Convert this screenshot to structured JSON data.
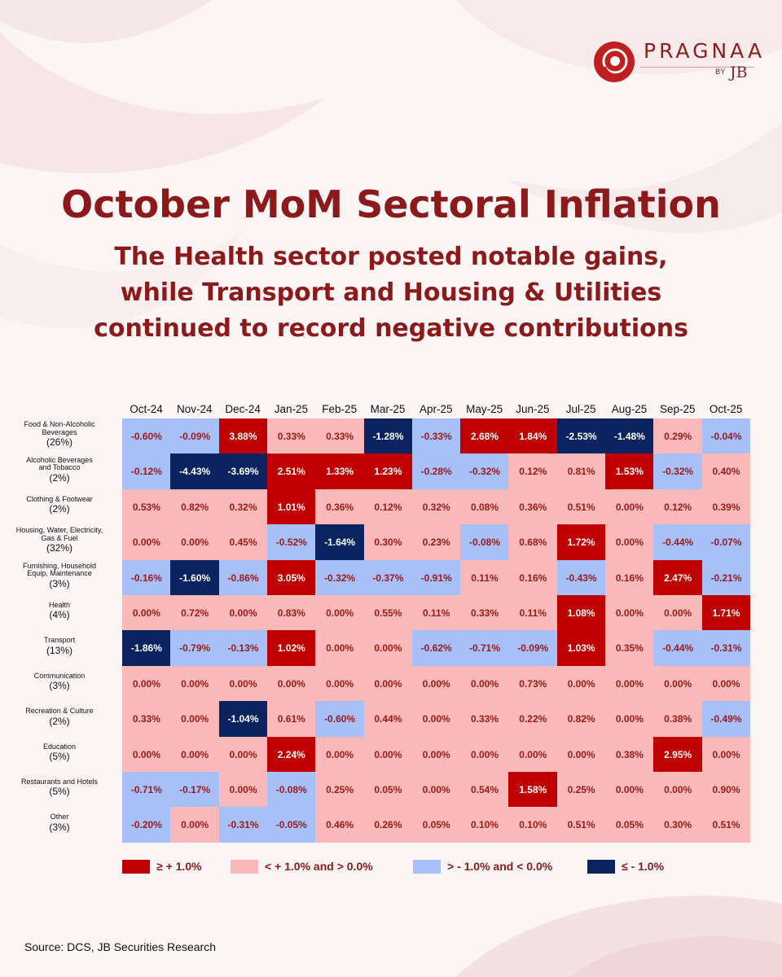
{
  "brand": {
    "name": "PRAGNAA",
    "by": "BY",
    "jb": "JB",
    "accent": "#b81f1f"
  },
  "title": "October MoM Sectoral Inflation",
  "subtitle_lines": [
    "The Health sector posted notable gains,",
    "while Transport and Housing & Utilities",
    "continued to record negative contributions"
  ],
  "chart_data": {
    "type": "heatmap",
    "columns": [
      "Oct-24",
      "Nov-24",
      "Dec-24",
      "Jan-25",
      "Feb-25",
      "Mar-25",
      "Apr-25",
      "May-25",
      "Jun-25",
      "Jul-25",
      "Aug-25",
      "Sep-25",
      "Oct-25"
    ],
    "rows": [
      {
        "name_lines": [
          "Food & Non-Alcoholic",
          "Beverages"
        ],
        "weight": "(26%)",
        "values": [
          "-0.60%",
          "-0.09%",
          "3.88%",
          "0.33%",
          "0.33%",
          "-1.28%",
          "-0.33%",
          "2.68%",
          "1.84%",
          "-2.53%",
          "-1.48%",
          "0.29%",
          "-0.04%"
        ]
      },
      {
        "name_lines": [
          "Alcoholic Beverages",
          "and Tobacco"
        ],
        "weight": "(2%)",
        "values": [
          "-0.12%",
          "-4.43%",
          "-3.69%",
          "2.51%",
          "1.33%",
          "1.23%",
          "-0.28%",
          "-0.32%",
          "0.12%",
          "0.81%",
          "1.53%",
          "-0.32%",
          "0.40%"
        ]
      },
      {
        "name_lines": [
          "Clothing & Footwear"
        ],
        "weight": "(2%)",
        "values": [
          "0.53%",
          "0.82%",
          "0.32%",
          "1.01%",
          "0.36%",
          "0.12%",
          "0.32%",
          "0.08%",
          "0.36%",
          "0.51%",
          "0.00%",
          "0.12%",
          "0.39%"
        ]
      },
      {
        "name_lines": [
          "Housing, Water, Electricity,",
          "Gas & Fuel"
        ],
        "weight": "(32%)",
        "values": [
          "0.00%",
          "0.00%",
          "0.45%",
          "-0.52%",
          "-1.64%",
          "0.30%",
          "0.23%",
          "-0.08%",
          "0.68%",
          "1.72%",
          "0.00%",
          "-0.44%",
          "-0.07%"
        ]
      },
      {
        "name_lines": [
          "Furnishing, Household",
          "Equip, Maintenance"
        ],
        "weight": "(3%)",
        "values": [
          "-0.16%",
          "-1.60%",
          "-0.86%",
          "3.05%",
          "-0.32%",
          "-0.37%",
          "-0.91%",
          "0.11%",
          "0.16%",
          "-0.43%",
          "0.16%",
          "2.47%",
          "-0.21%"
        ]
      },
      {
        "name_lines": [
          "Health"
        ],
        "weight": "(4%)",
        "values": [
          "0.00%",
          "0.72%",
          "0.00%",
          "0.83%",
          "0.00%",
          "0.55%",
          "0.11%",
          "0.33%",
          "0.11%",
          "1.08%",
          "0.00%",
          "0.00%",
          "1.71%"
        ]
      },
      {
        "name_lines": [
          "Transport"
        ],
        "weight": "(13%)",
        "values": [
          "-1.86%",
          "-0.79%",
          "-0.13%",
          "1.02%",
          "0.00%",
          "0.00%",
          "-0.62%",
          "-0.71%",
          "-0.09%",
          "1.03%",
          "0.35%",
          "-0.44%",
          "-0.31%"
        ]
      },
      {
        "name_lines": [
          "Communication"
        ],
        "weight": "(3%)",
        "values": [
          "0.00%",
          "0.00%",
          "0.00%",
          "0.00%",
          "0.00%",
          "0.00%",
          "0.00%",
          "0.00%",
          "0.73%",
          "0.00%",
          "0.00%",
          "0.00%",
          "0.00%"
        ]
      },
      {
        "name_lines": [
          "Recreation & Culture"
        ],
        "weight": "(2%)",
        "values": [
          "0.33%",
          "0.00%",
          "-1.04%",
          "0.61%",
          "-0.60%",
          "0.44%",
          "0.00%",
          "0.33%",
          "0.22%",
          "0.82%",
          "0.00%",
          "0.38%",
          "-0.49%"
        ]
      },
      {
        "name_lines": [
          "Education"
        ],
        "weight": "(5%)",
        "values": [
          "0.00%",
          "0.00%",
          "0.00%",
          "2.24%",
          "0.00%",
          "0.00%",
          "0.00%",
          "0.00%",
          "0.00%",
          "0.00%",
          "0.38%",
          "2.95%",
          "0.00%"
        ]
      },
      {
        "name_lines": [
          "Restaurants and Hotels"
        ],
        "weight": "(5%)",
        "values": [
          "-0.71%",
          "-0.17%",
          "0.00%",
          "-0.08%",
          "0.25%",
          "0.05%",
          "0.00%",
          "0.54%",
          "1.58%",
          "0.25%",
          "0.00%",
          "0.00%",
          "0.90%"
        ]
      },
      {
        "name_lines": [
          "Other"
        ],
        "weight": "(3%)",
        "values": [
          "-0.20%",
          "0.00%",
          "-0.31%",
          "-0.05%",
          "0.46%",
          "0.26%",
          "0.05%",
          "0.10%",
          "0.10%",
          "0.51%",
          "0.05%",
          "0.30%",
          "0.51%"
        ]
      }
    ],
    "legend": [
      {
        "label": "≥ + 1.0%",
        "color": "#c00000"
      },
      {
        "label": "< + 1.0% and > 0.0%",
        "color": "#fbb9b9"
      },
      {
        "label": "> - 1.0% and < 0.0%",
        "color": "#a7c0f8"
      },
      {
        "label": "≤ - 1.0%",
        "color": "#0b2461"
      }
    ],
    "colors": {
      "strong_pos": "#c00000",
      "pos": "#fbb9b9",
      "neg": "#a7c0f8",
      "strong_neg": "#0b2461",
      "dark_text": "#9a1a1a",
      "light_text": "#ffffff"
    }
  },
  "source": "Source: DCS, JB Securities Research"
}
